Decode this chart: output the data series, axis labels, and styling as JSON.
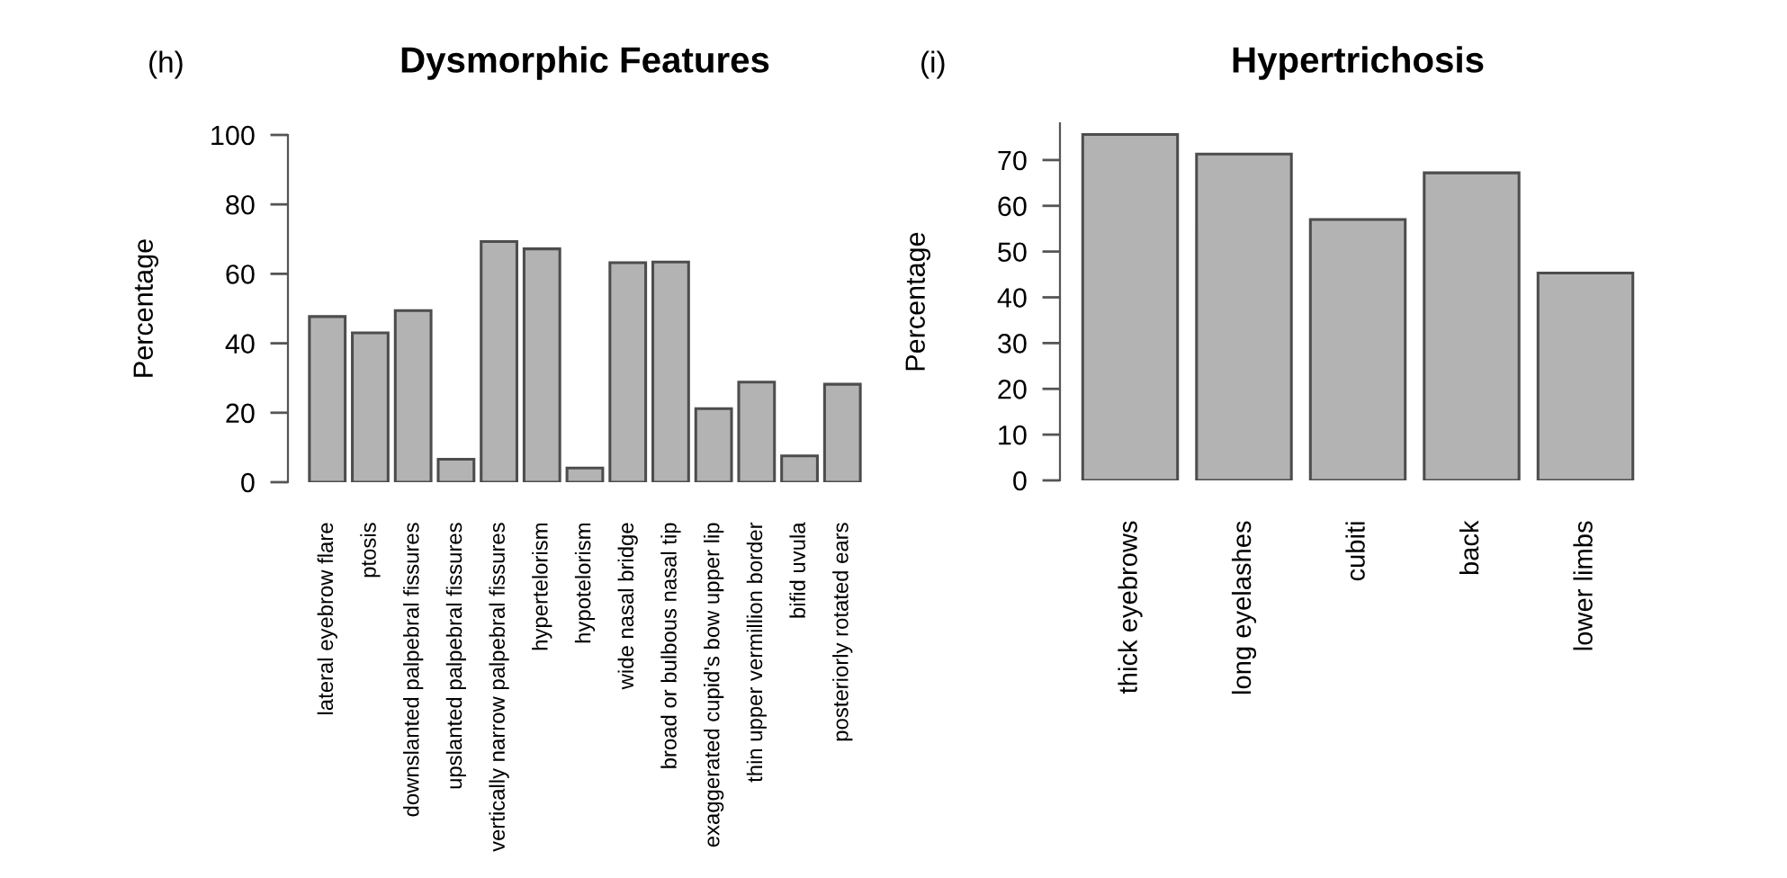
{
  "chart_data": [
    {
      "type": "bar",
      "title": "Dysmorphic Features",
      "ylabel": "Percentage",
      "annotations": [
        "(h)"
      ],
      "categories": [
        "lateral eyebrow flare",
        "ptosis",
        "downslanted palpebral fissures",
        "upslanted palpebral fissures",
        "vertically narrow palpebral fissures",
        "hypertelorism",
        "hypotelorism",
        "wide nasal bridge",
        "broad or bulbous nasal tip",
        "exaggerated cupid's bow upper lip",
        "thin upper vermillion border",
        "bifid uvula",
        "posteriorly rotated ears"
      ],
      "values": [
        47.7,
        43.0,
        49.4,
        6.6,
        69.3,
        67.2,
        4.1,
        63.2,
        63.4,
        21.2,
        28.8,
        7.6,
        28.2
      ],
      "color": "#b3b3b3",
      "ylim": [
        0,
        100
      ],
      "yticks": [
        0,
        20,
        40,
        60,
        80,
        100
      ]
    },
    {
      "type": "bar",
      "title": "Hypertrichosis",
      "ylabel": "Percentage",
      "annotations": [
        "(i)"
      ],
      "categories": [
        "thick eyebrows",
        "long eyelashes",
        "cubiti",
        "back",
        "lower limbs"
      ],
      "values": [
        75.6,
        71.3,
        57.0,
        67.2,
        45.3
      ],
      "color": "#b3b3b3",
      "ylim": [
        0,
        78
      ],
      "yticks": [
        0,
        10,
        20,
        30,
        40,
        50,
        60,
        70
      ]
    }
  ]
}
